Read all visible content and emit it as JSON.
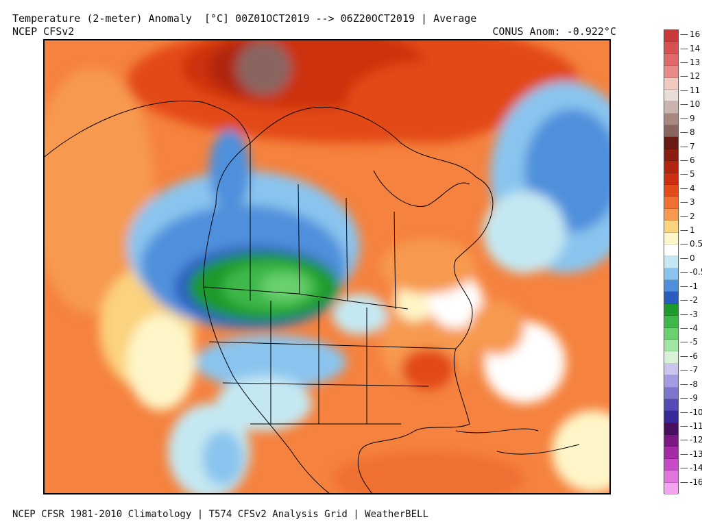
{
  "header": {
    "title": "Temperature (2-meter) Anomaly  [°C] 00Z01OCT2019 --> 06Z20OCT2019 | Average",
    "source": "NCEP CFSv2",
    "conus_anomaly": "CONUS Anom: -0.922°C"
  },
  "footer": "NCEP CFSR 1981-2010 Climatology | T574 CFSv2 Analysis Grid | WeatherBELL",
  "colorbar": {
    "labels": [
      "16",
      "14",
      "13",
      "12",
      "11",
      "10",
      "9",
      "8",
      "7",
      "6",
      "5",
      "4",
      "3",
      "2",
      "1",
      "0.5",
      "0",
      "-0.5",
      "-1",
      "-2",
      "-3",
      "-4",
      "-5",
      "-6",
      "-7",
      "-8",
      "-9",
      "-10",
      "-11",
      "-12",
      "-13",
      "-14",
      "-16"
    ],
    "colors": [
      "#c83a3a",
      "#d65252",
      "#e06a6a",
      "#e98a8a",
      "#f0c9c0",
      "#e8ddd8",
      "#c9b4ae",
      "#a88780",
      "#8a6560",
      "#6a1c12",
      "#8a1e10",
      "#b0260f",
      "#cc3010",
      "#e24a18",
      "#f07030",
      "#f79a50",
      "#fbd27e",
      "#fef6c8",
      "#ffffff",
      "#c4e8f2",
      "#8ac4ee",
      "#4f90dc",
      "#2a5cbf",
      "#1e9a2c",
      "#3eb84a",
      "#6ad070",
      "#a2e4a4",
      "#d8f2d8",
      "#c9c5ee",
      "#a49ce0",
      "#7d74cc",
      "#564ab6",
      "#352a98",
      "#4a1060",
      "#7a1a82",
      "#a42aa6",
      "#c74ac6",
      "#e076dc",
      "#f2a4ee"
    ],
    "accent": "#000000"
  }
}
